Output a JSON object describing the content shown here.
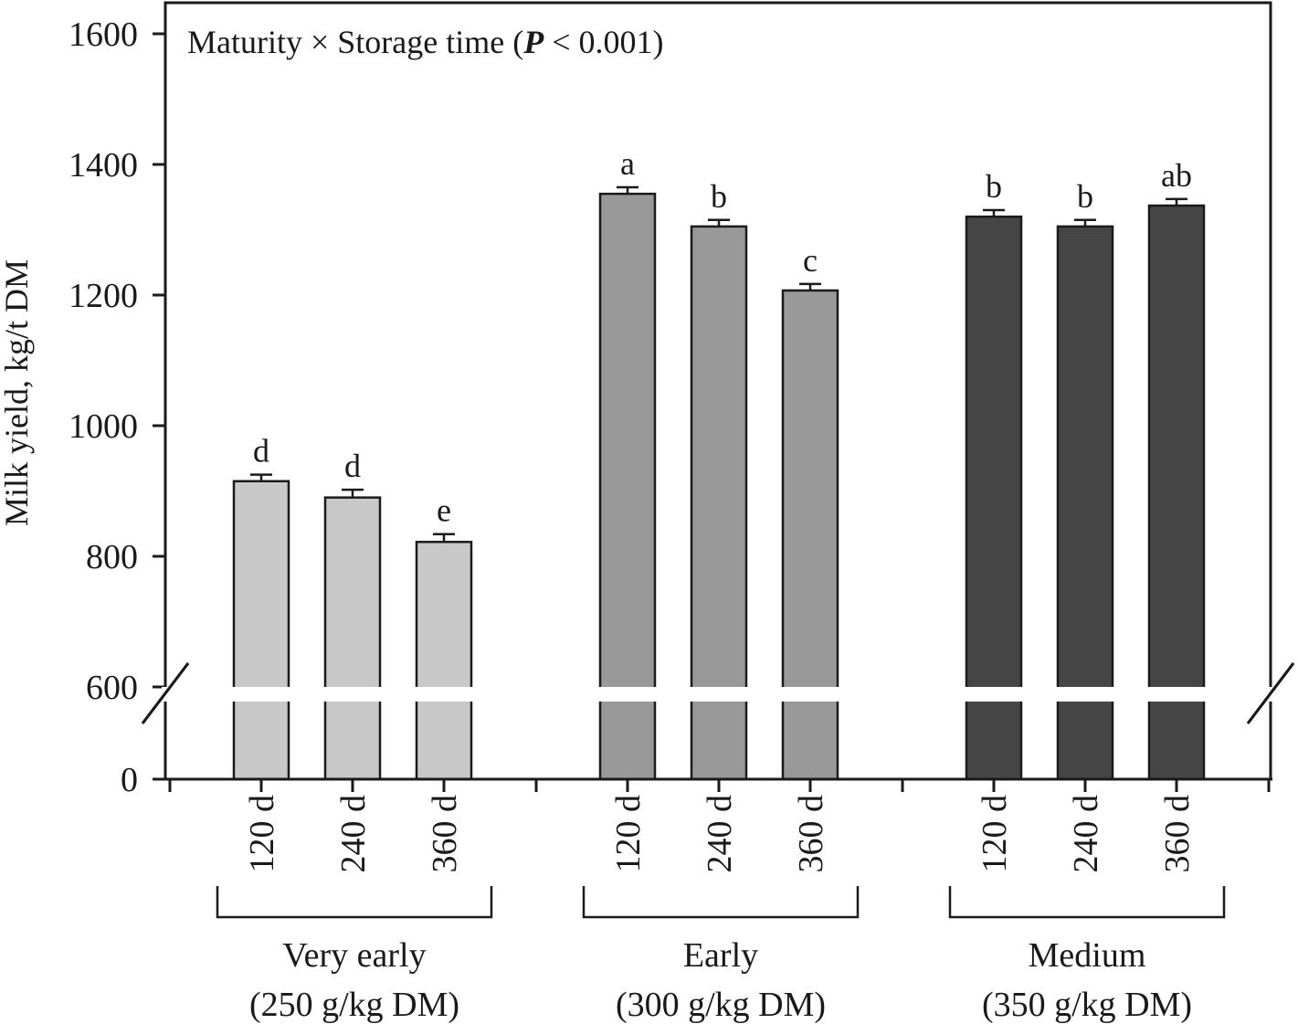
{
  "chart_data": {
    "type": "bar",
    "title": "Maturity × Storage time (",
    "title_p": "P",
    "title_rest": " < 0.001)",
    "ylabel": "Milk yield, kg/t DM",
    "xlabel": "",
    "ylim": [
      0,
      1600
    ],
    "axis_break": [
      0,
      600
    ],
    "yticks": [
      0,
      600,
      800,
      1000,
      1200,
      1400,
      1600
    ],
    "ytick_labels": [
      "0",
      "600",
      "800",
      "1000",
      "1200",
      "1400",
      "1600"
    ],
    "grid": false,
    "groups": [
      {
        "name": "Very early",
        "sub": "(250 g/kg DM)",
        "color": "#c8c8c8",
        "bars": [
          {
            "label": "120 d",
            "value": 915,
            "err": 10,
            "sig": "d"
          },
          {
            "label": "240 d",
            "value": 890,
            "err": 12,
            "sig": "d"
          },
          {
            "label": "360 d",
            "value": 822,
            "err": 12,
            "sig": "e"
          }
        ]
      },
      {
        "name": "Early",
        "sub": "(300 g/kg DM)",
        "color": "#999999",
        "bars": [
          {
            "label": "120 d",
            "value": 1355,
            "err": 10,
            "sig": "a"
          },
          {
            "label": "240 d",
            "value": 1305,
            "err": 10,
            "sig": "b"
          },
          {
            "label": "360 d",
            "value": 1207,
            "err": 10,
            "sig": "c"
          }
        ]
      },
      {
        "name": "Medium",
        "sub": "(350 g/kg DM)",
        "color": "#464646",
        "bars": [
          {
            "label": "120 d",
            "value": 1320,
            "err": 10,
            "sig": "b"
          },
          {
            "label": "240 d",
            "value": 1305,
            "err": 10,
            "sig": "b"
          },
          {
            "label": "360 d",
            "value": 1337,
            "err": 10,
            "sig": "ab"
          }
        ]
      }
    ]
  }
}
